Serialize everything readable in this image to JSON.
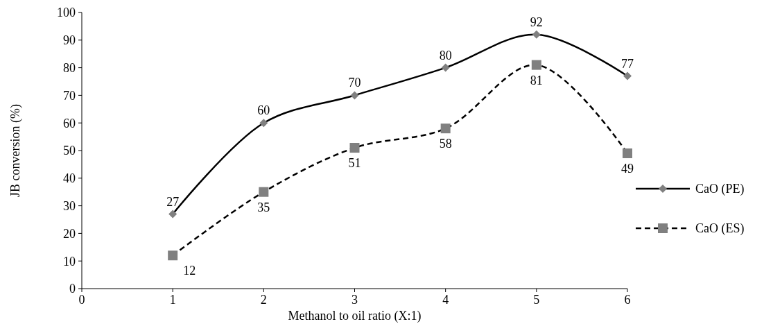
{
  "chart_data": {
    "type": "line",
    "xlabel": "Methanol to oil ratio (X:1)",
    "ylabel": "JB conversion (%)",
    "x": [
      1,
      2,
      3,
      4,
      5,
      6
    ],
    "series": [
      {
        "name": "CaO (PE)",
        "color": "#000000",
        "values": [
          27,
          60,
          70,
          80,
          92,
          77
        ],
        "marker": "diamond",
        "line_style": "solid"
      },
      {
        "name": "CaO (ES)",
        "color": "#000000",
        "values": [
          12,
          35,
          51,
          58,
          81,
          49
        ],
        "marker": "square",
        "line_style": "dashed"
      }
    ],
    "xlim": [
      0,
      6
    ],
    "xticks": [
      0,
      1,
      2,
      3,
      4,
      5,
      6
    ],
    "ylim": [
      0,
      100
    ],
    "yticks": [
      0,
      10,
      20,
      30,
      40,
      50,
      60,
      70,
      80,
      90,
      100
    ],
    "data_labels": true,
    "legend": "right",
    "grid": false
  }
}
